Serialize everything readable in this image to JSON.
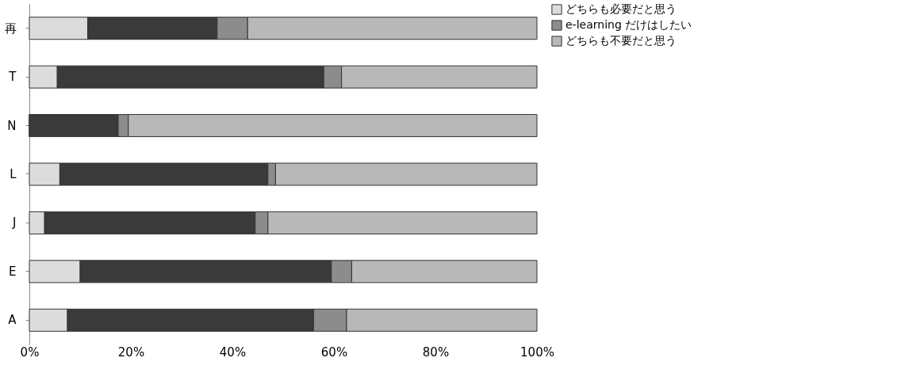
{
  "chart_data": {
    "type": "bar",
    "orientation": "horizontal",
    "stacked": true,
    "categories": [
      "再",
      "T",
      "N",
      "L",
      "J",
      "E",
      "A"
    ],
    "series": [
      {
        "name": "どちらも必要だと思う",
        "color": "#dcdcdc",
        "values": [
          11.5,
          5.5,
          0,
          6,
          3,
          10,
          7.5
        ]
      },
      {
        "color": "#3a3a3a",
        "values": [
          25.5,
          52.5,
          17.5,
          41,
          41.5,
          49.5,
          48.5
        ]
      },
      {
        "name": "e-learning だけはしたい",
        "color": "#8c8c8c",
        "values": [
          6,
          3.5,
          2,
          1.5,
          2.5,
          4,
          6.5
        ]
      },
      {
        "name": "どちらも不要だと思う",
        "color": "#b8b8b8",
        "values": [
          57,
          38.5,
          80.5,
          51.5,
          53,
          36.5,
          37.5
        ]
      }
    ],
    "xlim": [
      0,
      100
    ],
    "xticks": [
      {
        "value": 0,
        "label": "0%"
      },
      {
        "value": 20,
        "label": "20%"
      },
      {
        "value": 40,
        "label": "40%"
      },
      {
        "value": 60,
        "label": "60%"
      },
      {
        "value": 80,
        "label": "80%"
      },
      {
        "value": 100,
        "label": "100%"
      }
    ],
    "grid": false,
    "legend": "right"
  }
}
